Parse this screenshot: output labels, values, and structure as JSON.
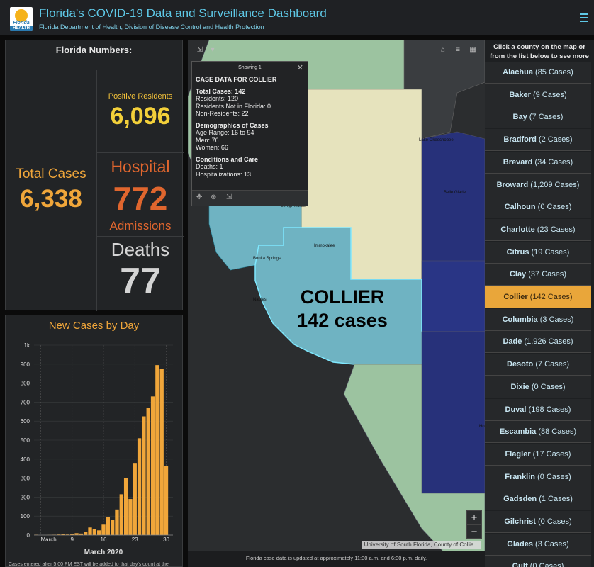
{
  "header": {
    "title": "Florida's COVID-19 Data and Surveillance Dashboard",
    "subtitle": "Florida Department of Health, Division of Disease Control and Health Protection",
    "logo_line1": "Florida",
    "logo_line2": "HEALTH",
    "accent": "#5ec8e6"
  },
  "numbers": {
    "title": "Florida Numbers:",
    "total_cases_label": "Total Cases",
    "total_cases": "6,338",
    "positive_label": "Positive Residents",
    "positive": "6,096",
    "hospital_label": "Hospital",
    "hospital": "772",
    "hospital_sub": "Admissions",
    "deaths_label": "Deaths",
    "deaths": "77"
  },
  "chart": {
    "title": "New Cases by Day",
    "note": "Cases entered after 5:00 PM EST will be added to that day's count at the"
  },
  "chart_data": {
    "type": "bar",
    "title": "New Cases by Day",
    "xlabel": "March 2020",
    "ylabel": "",
    "ylim": [
      0,
      1000
    ],
    "y_ticks": [
      "0",
      "100",
      "200",
      "300",
      "400",
      "500",
      "600",
      "700",
      "800",
      "900",
      "1k"
    ],
    "x_tick_labels": [
      {
        "day": 2,
        "label": "March"
      },
      {
        "day": 9,
        "label": "9"
      },
      {
        "day": 16,
        "label": "16"
      },
      {
        "day": 23,
        "label": "23"
      },
      {
        "day": 30,
        "label": "30"
      }
    ],
    "days": [
      1,
      2,
      3,
      4,
      5,
      6,
      7,
      8,
      9,
      10,
      11,
      12,
      13,
      14,
      15,
      16,
      17,
      18,
      19,
      20,
      21,
      22,
      23,
      24,
      25,
      26,
      27,
      28,
      29,
      30,
      31
    ],
    "values": [
      2,
      0,
      0,
      1,
      2,
      3,
      4,
      3,
      5,
      10,
      8,
      18,
      40,
      30,
      25,
      55,
      95,
      80,
      135,
      215,
      300,
      190,
      380,
      510,
      625,
      670,
      730,
      895,
      875,
      365,
      0
    ],
    "bar_color": "#f0a63a"
  },
  "map": {
    "popup_header": "Showing 1",
    "popup_title": "CASE DATA FOR COLLIER",
    "popup_lines": {
      "total": "Total Cases: 142",
      "residents": "Residents: 120",
      "not_in_fl": "Residents Not in Florida: 0",
      "non_res": "Non-Residents: 22",
      "demo_title": "Demographics of Cases",
      "age": "Age Range: 16 to 94",
      "men": "Men: 76",
      "women": "Women: 66",
      "care_title": "Conditions and Care",
      "deaths": "Deaths: 1",
      "hosp": "Hospitalizations: 13"
    },
    "label_county": "COLLIER",
    "label_cases": "142 cases",
    "places": {
      "lake": "Lake Okeechobee",
      "belle": "Belle Glade",
      "lehigh": "Lehigh Acres",
      "immokalee": "Immokalee",
      "bonita": "Bonita Springs",
      "naples": "Naples",
      "ho": "Ho"
    },
    "attribution": "University of South Florida, County of Collie...",
    "footer": "Florida case data is updated at approximately 11:30 a.m. and 6:30 p.m. daily.",
    "zoom_in": "+",
    "zoom_out": "−",
    "colors": {
      "collier": "#6fb3c2",
      "dark_blue": "#27317a",
      "light_green": "#9cc3a0",
      "pale": "#e6e3bd"
    }
  },
  "counties": {
    "header_line1": "Click a county on the map or",
    "header_line2": "from the list below to see more",
    "items": [
      {
        "name": "Alachua",
        "cases": "(85 Cases)"
      },
      {
        "name": "Baker",
        "cases": "(9 Cases)"
      },
      {
        "name": "Bay",
        "cases": "(7 Cases)"
      },
      {
        "name": "Bradford",
        "cases": "(2 Cases)"
      },
      {
        "name": "Brevard",
        "cases": "(34 Cases)"
      },
      {
        "name": "Broward",
        "cases": "(1,209 Cases)"
      },
      {
        "name": "Calhoun",
        "cases": "(0 Cases)"
      },
      {
        "name": "Charlotte",
        "cases": "(23 Cases)"
      },
      {
        "name": "Citrus",
        "cases": "(19 Cases)"
      },
      {
        "name": "Clay",
        "cases": "(37 Cases)"
      },
      {
        "name": "Collier",
        "cases": "(142 Cases)"
      },
      {
        "name": "Columbia",
        "cases": "(3 Cases)"
      },
      {
        "name": "Dade",
        "cases": "(1,926 Cases)"
      },
      {
        "name": "Desoto",
        "cases": "(7 Cases)"
      },
      {
        "name": "Dixie",
        "cases": "(0 Cases)"
      },
      {
        "name": "Duval",
        "cases": "(198 Cases)"
      },
      {
        "name": "Escambia",
        "cases": "(88 Cases)"
      },
      {
        "name": "Flagler",
        "cases": "(17 Cases)"
      },
      {
        "name": "Franklin",
        "cases": "(0 Cases)"
      },
      {
        "name": "Gadsden",
        "cases": "(1 Cases)"
      },
      {
        "name": "Gilchrist",
        "cases": "(0 Cases)"
      },
      {
        "name": "Glades",
        "cases": "(3 Cases)"
      },
      {
        "name": "Gulf",
        "cases": "(0 Cases)"
      }
    ],
    "selected": "Collier",
    "selected_color": "#e9a63a"
  }
}
